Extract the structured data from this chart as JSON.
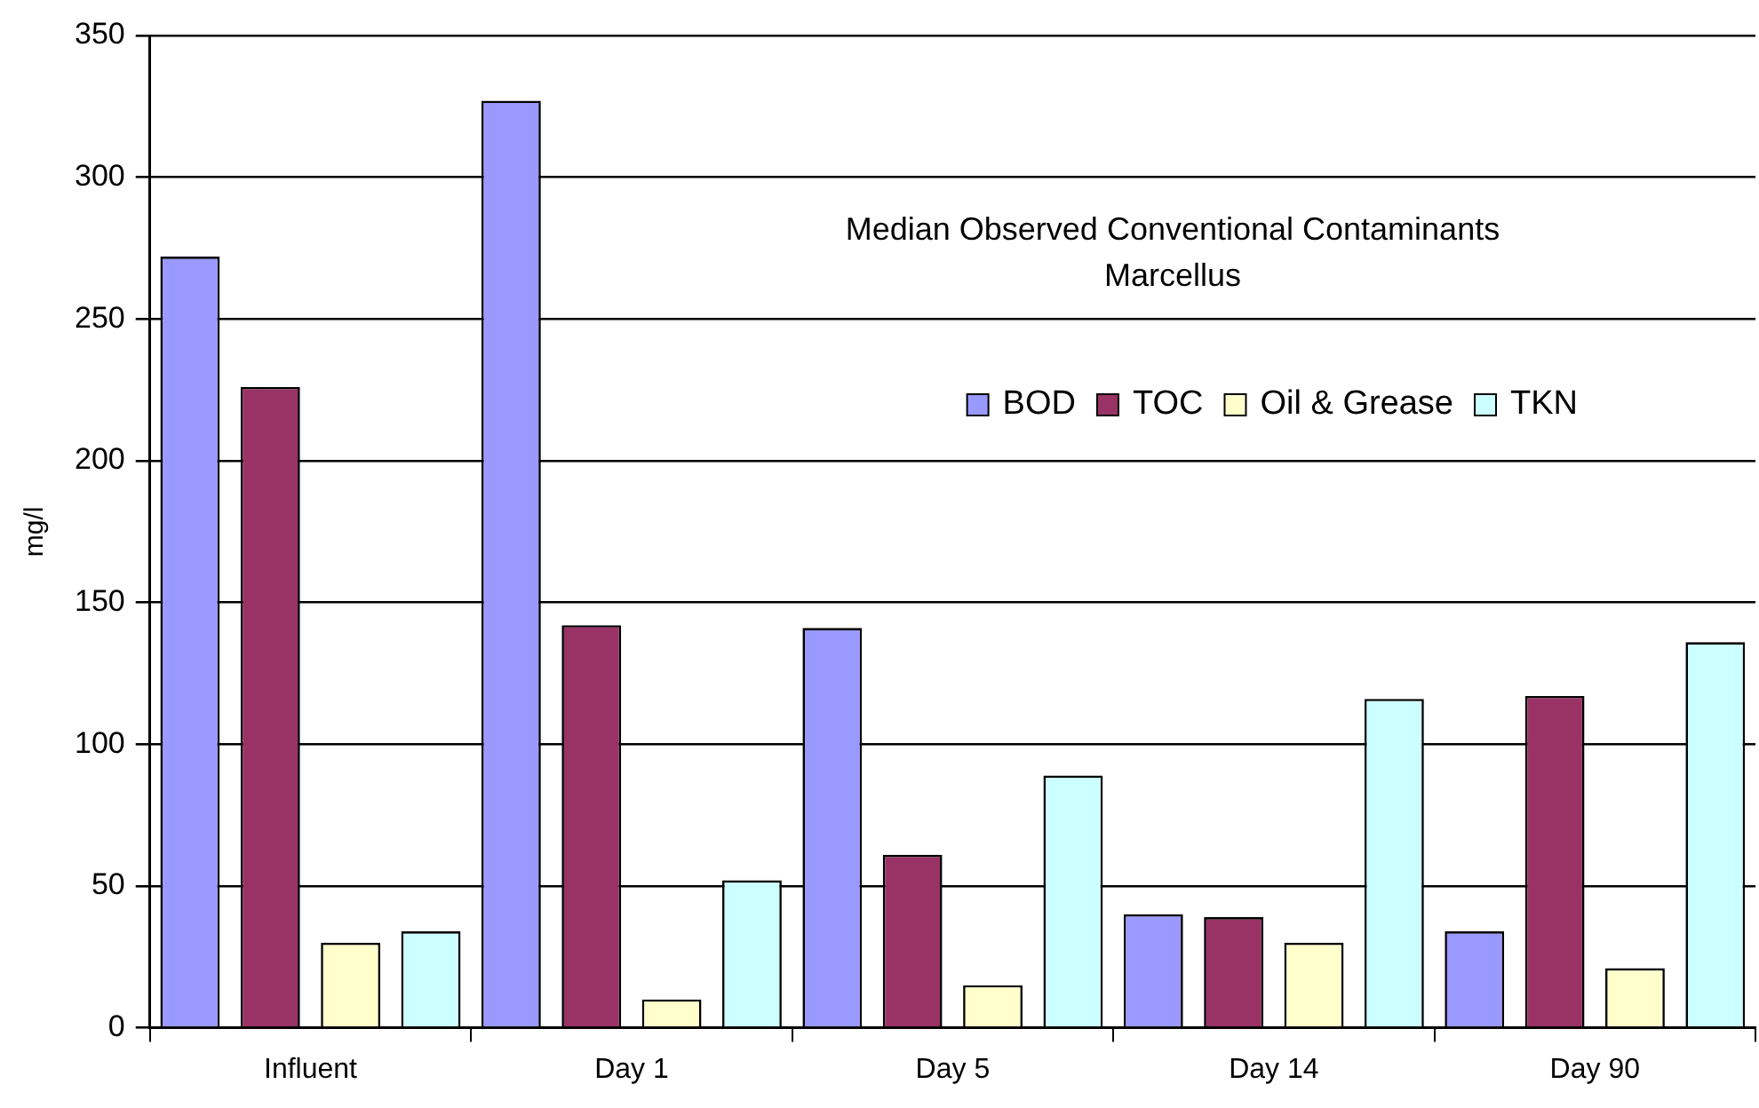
{
  "chart_data": {
    "type": "bar",
    "title": "Median Observed Conventional Contaminants",
    "subtitle": "Marcellus",
    "ylabel": "mg/l",
    "categories": [
      "Influent",
      "Day 1",
      "Day 5",
      "Day 14",
      "Day 90"
    ],
    "series": [
      {
        "name": "BOD",
        "color": "#9999ff",
        "values": [
          272,
          327,
          141,
          40,
          34
        ]
      },
      {
        "name": "TOC",
        "color": "#993366",
        "values": [
          226,
          142,
          61,
          39,
          117
        ]
      },
      {
        "name": "Oil & Grease",
        "color": "#ffffcc",
        "values": [
          30,
          10,
          15,
          30,
          21
        ]
      },
      {
        "name": "TKN",
        "color": "#ccffff",
        "values": [
          34,
          52,
          89,
          116,
          136
        ]
      }
    ],
    "ylim": [
      0,
      350
    ],
    "yticks": [
      0,
      50,
      100,
      150,
      200,
      250,
      300,
      350
    ],
    "grid": "y",
    "legend": "top right"
  }
}
